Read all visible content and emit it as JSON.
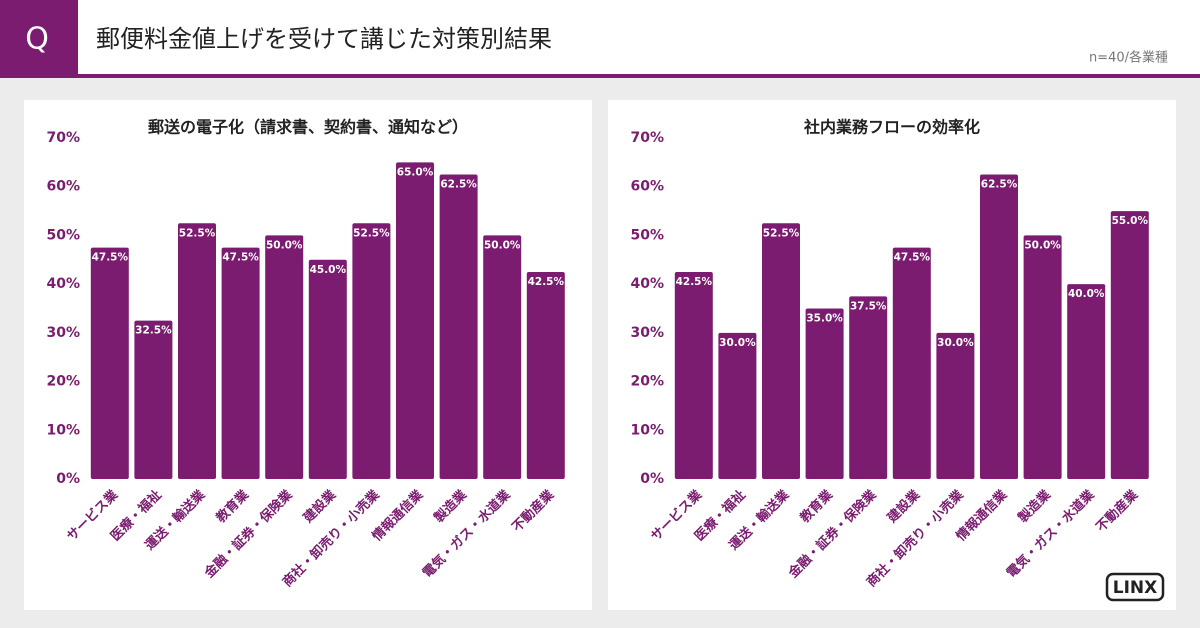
{
  "header": {
    "badge": "Q",
    "title": "郵便料金値上げを受けて講じた対策別結果",
    "note": "n=40/各業種"
  },
  "logo": "LINX",
  "chart_data": [
    {
      "type": "bar",
      "title": "郵送の電子化（請求書、契約書、通知など）",
      "categories": [
        "サービス業",
        "医療・福祉",
        "運送・輸送業",
        "教育業",
        "金融・証券・保険業",
        "建設業",
        "商社・卸売り・小売業",
        "情報通信業",
        "製造業",
        "電気・ガス・水道業",
        "不動産業"
      ],
      "values": [
        47.5,
        32.5,
        52.5,
        47.5,
        50,
        45,
        52.5,
        65,
        62.5,
        50,
        42.5
      ],
      "value_labels": [
        "47.5%",
        "32.5%",
        "52.5%",
        "47.5%",
        "50.0%",
        "45.0%",
        "52.5%",
        "65.0%",
        "62.5%",
        "50.0%",
        "42.5%"
      ],
      "color": "#7b1c70",
      "ylim": [
        0,
        70
      ],
      "yticks": [
        {
          "value": 0,
          "label": "0%"
        },
        {
          "value": 10,
          "label": "10%"
        },
        {
          "value": 20,
          "label": "20%"
        },
        {
          "value": 30,
          "label": "30%"
        },
        {
          "value": 40,
          "label": "40%"
        },
        {
          "value": 50,
          "label": "50%"
        },
        {
          "value": 60,
          "label": "60%"
        },
        {
          "value": 70,
          "label": "70%"
        }
      ],
      "grid": false
    },
    {
      "type": "bar",
      "title": "社内業務フローの効率化",
      "categories": [
        "サービス業",
        "医療・福祉",
        "運送・輸送業",
        "教育業",
        "金融・証券・保険業",
        "建設業",
        "商社・卸売り・小売業",
        "情報通信業",
        "製造業",
        "電気・ガス・水道業",
        "不動産業"
      ],
      "values": [
        42.5,
        30,
        52.5,
        35,
        37.5,
        47.5,
        30,
        62.5,
        50,
        40,
        55
      ],
      "value_labels": [
        "42.5%",
        "30.0%",
        "52.5%",
        "35.0%",
        "37.5%",
        "47.5%",
        "30.0%",
        "62.5%",
        "50.0%",
        "40.0%",
        "55.0%"
      ],
      "color": "#7b1c70",
      "ylim": [
        0,
        70
      ],
      "yticks": [
        {
          "value": 0,
          "label": "0%"
        },
        {
          "value": 10,
          "label": "10%"
        },
        {
          "value": 20,
          "label": "20%"
        },
        {
          "value": 30,
          "label": "30%"
        },
        {
          "value": 40,
          "label": "40%"
        },
        {
          "value": 50,
          "label": "50%"
        },
        {
          "value": 60,
          "label": "60%"
        },
        {
          "value": 70,
          "label": "70%"
        }
      ],
      "grid": false
    }
  ]
}
